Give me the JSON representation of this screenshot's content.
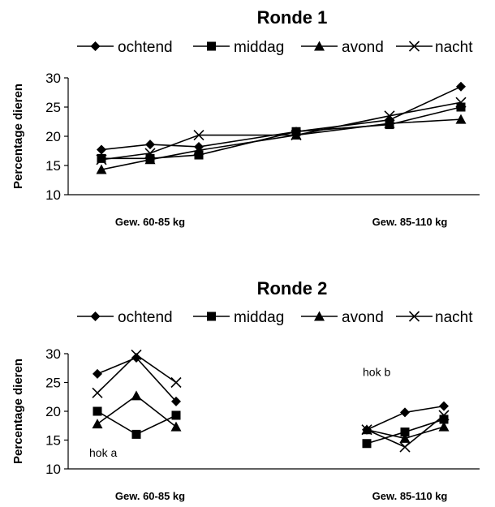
{
  "chart_data": [
    {
      "type": "line",
      "title": "Ronde 1",
      "ylabel": "Percentage dieren",
      "ylim": [
        10,
        30
      ],
      "yticks": [
        "10",
        "15",
        "20",
        "25",
        "30"
      ],
      "categories": [
        "Gew. 60-85 kg",
        "Gew. 85-110 kg"
      ],
      "legend_position": "top",
      "grid": false,
      "series": [
        {
          "name": "ochtend",
          "marker": "diamond",
          "points": [
            {
              "x": 0,
              "y": 17.7
            },
            {
              "x": 1,
              "y": 18.6
            },
            {
              "x": 2,
              "y": 18.2
            },
            {
              "x": 3,
              "y": 20.8
            },
            {
              "x": 4,
              "y": 22.8
            },
            {
              "x": 5,
              "y": 28.5
            }
          ]
        },
        {
          "name": "middag",
          "marker": "square",
          "points": [
            {
              "x": 0,
              "y": 16.2
            },
            {
              "x": 1,
              "y": 16.2
            },
            {
              "x": 2,
              "y": 16.8
            },
            {
              "x": 3,
              "y": 20.8
            },
            {
              "x": 4,
              "y": 22.0
            },
            {
              "x": 5,
              "y": 25.0
            }
          ]
        },
        {
          "name": "avond",
          "marker": "triangle",
          "points": [
            {
              "x": 0,
              "y": 14.3
            },
            {
              "x": 1,
              "y": 16.0
            },
            {
              "x": 2,
              "y": 17.6
            },
            {
              "x": 3,
              "y": 20.2
            },
            {
              "x": 4,
              "y": 22.2
            },
            {
              "x": 5,
              "y": 22.9
            }
          ]
        },
        {
          "name": "nacht",
          "marker": "x",
          "points": [
            {
              "x": 0,
              "y": 16.0
            },
            {
              "x": 1,
              "y": 17.1
            },
            {
              "x": 2,
              "y": 20.2
            },
            {
              "x": 3,
              "y": 20.2
            },
            {
              "x": 4,
              "y": 23.5
            },
            {
              "x": 5,
              "y": 25.8
            }
          ]
        }
      ],
      "annotations": []
    },
    {
      "type": "line",
      "title": "Ronde 2",
      "ylabel": "Percentage dieren",
      "ylim": [
        10,
        30
      ],
      "yticks": [
        "10",
        "15",
        "20",
        "25",
        "30"
      ],
      "categories": [
        "Gew. 60-85 kg",
        "Gew. 85-110 kg"
      ],
      "legend_position": "top",
      "grid": false,
      "series": [
        {
          "name": "ochtend",
          "marker": "diamond",
          "points": [
            {
              "x": 0,
              "y": 26.5
            },
            {
              "x": 1,
              "y": 29.3
            },
            {
              "x": 2,
              "y": 21.7
            },
            {
              "x": 5,
              "y": 16.8
            },
            {
              "x": 6,
              "y": 19.8
            },
            {
              "x": 7,
              "y": 20.9
            }
          ]
        },
        {
          "name": "middag",
          "marker": "square",
          "points": [
            {
              "x": 0,
              "y": 20.0
            },
            {
              "x": 1,
              "y": 16.0
            },
            {
              "x": 2,
              "y": 19.3
            },
            {
              "x": 5,
              "y": 14.4
            },
            {
              "x": 6,
              "y": 16.4
            },
            {
              "x": 7,
              "y": 18.6
            }
          ]
        },
        {
          "name": "avond",
          "marker": "triangle",
          "points": [
            {
              "x": 0,
              "y": 17.8
            },
            {
              "x": 1,
              "y": 22.7
            },
            {
              "x": 2,
              "y": 17.3
            },
            {
              "x": 5,
              "y": 16.8
            },
            {
              "x": 6,
              "y": 15.3
            },
            {
              "x": 7,
              "y": 17.3
            }
          ]
        },
        {
          "name": "nacht",
          "marker": "x",
          "points": [
            {
              "x": 0,
              "y": 23.2
            },
            {
              "x": 1,
              "y": 29.8
            },
            {
              "x": 2,
              "y": 25.0
            },
            {
              "x": 5,
              "y": 16.8
            },
            {
              "x": 6,
              "y": 13.8
            },
            {
              "x": 7,
              "y": 19.3
            }
          ]
        }
      ],
      "annotations": [
        {
          "text": "hok a",
          "x": 0.1,
          "y": 12.8
        },
        {
          "text": "hok b",
          "x": 5.8,
          "y": 26.8
        }
      ]
    }
  ]
}
